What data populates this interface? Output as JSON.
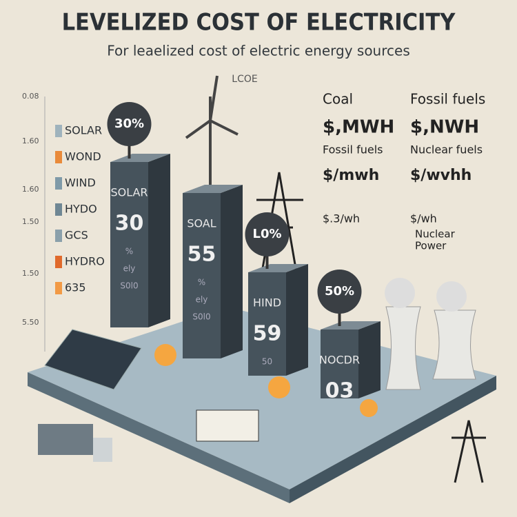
{
  "header": {
    "title": "LEVELIZED COST OF ELECTRICITY",
    "subtitle": "For leaelized cost of electric energy sources",
    "label": "LCOE"
  },
  "scale": [
    "0.08",
    "1.60",
    "1.60",
    "1.50",
    "1.50",
    "5.50"
  ],
  "legend": [
    {
      "label": "SOLAR",
      "color": "#9fb3bd"
    },
    {
      "label": "WOND",
      "color": "#e98a3a"
    },
    {
      "label": "WIND",
      "color": "#7f9aa8"
    },
    {
      "label": "HYDO",
      "color": "#6f8794"
    },
    {
      "label": "GCS",
      "color": "#8aa0ab"
    },
    {
      "label": "HYDRO",
      "color": "#e06a2c"
    },
    {
      "label": "635",
      "color": "#f29a45"
    }
  ],
  "bars": [
    {
      "name": "SOLAR",
      "value": "30",
      "bubble": "30%",
      "notes": [
        "%",
        "ely",
        "S0l0"
      ]
    },
    {
      "name": "SOAL",
      "value": "55",
      "bubble": null,
      "notes": [
        "%",
        "ely",
        "S0l0"
      ]
    },
    {
      "name": "HIND",
      "value": "59",
      "bubble": "L0%",
      "notes": [
        "50"
      ]
    },
    {
      "name": "NOCDR",
      "value": "03",
      "bubble": "50%",
      "notes": []
    }
  ],
  "panel": {
    "col1": [
      "Coal",
      "$,MWH",
      "Fossil fuels",
      "$/mwh",
      "$.3/wh"
    ],
    "col2": [
      "Fossil fuels",
      "$,NWH",
      "Nuclear fuels",
      "$/wvhh",
      "$/wh",
      "Nuclear",
      "Power"
    ]
  }
}
